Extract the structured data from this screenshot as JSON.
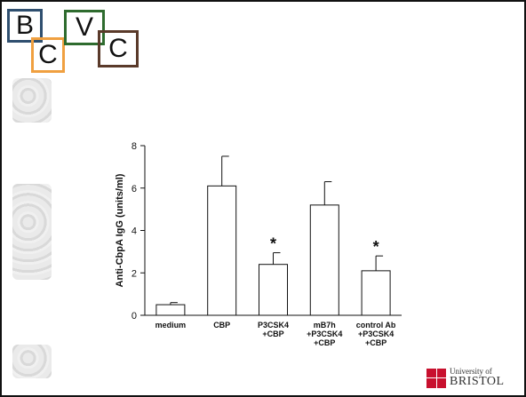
{
  "logo": {
    "letters": [
      "B",
      "C",
      "V",
      "C"
    ]
  },
  "chart_data": {
    "type": "bar",
    "title": "",
    "xlabel": "",
    "ylabel": "Anti-CbpA IgG (units/ml)",
    "ylim": [
      0,
      8
    ],
    "yticks": [
      "0",
      "2",
      "4",
      "6",
      "8"
    ],
    "categories": [
      [
        "medium"
      ],
      [
        "CBP"
      ],
      [
        "P3CSK4",
        "+CBP"
      ],
      [
        "mB7h",
        "+P3CSK4",
        "+CBP"
      ],
      [
        "control Ab",
        "+P3CSK4",
        "+CBP"
      ]
    ],
    "values": [
      0.5,
      6.1,
      2.4,
      5.2,
      2.1
    ],
    "errors": [
      0.1,
      1.4,
      0.55,
      1.1,
      0.7
    ],
    "significance": [
      "",
      "",
      "*",
      "",
      "*"
    ]
  },
  "footer": {
    "university_small": "University of",
    "university_big": "BRISTOL"
  },
  "colors": {
    "border": "#111111",
    "bar_fill": "#ffffff",
    "uob_red": "#c8102e"
  }
}
